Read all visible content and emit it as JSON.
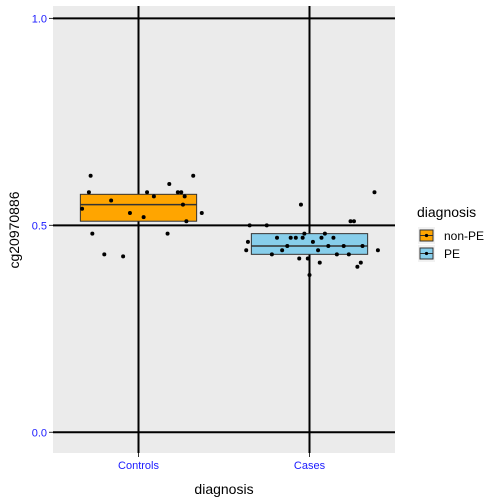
{
  "chart_data": {
    "type": "box",
    "xlabel": "diagnosis",
    "ylabel": "cg20970886",
    "ylim": [
      -0.05,
      1.03
    ],
    "y_ticks": [
      {
        "value": 0.0,
        "label": "0.0"
      },
      {
        "value": 0.5,
        "label": "0.5"
      },
      {
        "value": 1.0,
        "label": "1.0"
      }
    ],
    "categories": [
      "Controls",
      "Cases"
    ],
    "grid": true,
    "legend": {
      "title": "diagnosis",
      "placement": "right",
      "entries": [
        {
          "label": "non-PE",
          "color": "#FFA500"
        },
        {
          "label": "PE",
          "color": "#87CEEB"
        }
      ]
    },
    "boxes": [
      {
        "category": "Controls",
        "series": "non-PE",
        "color": "#FFA500",
        "q1": 0.51,
        "median": 0.55,
        "q3": 0.575
      },
      {
        "category": "Cases",
        "series": "PE",
        "color": "#87CEEB",
        "q1": 0.43,
        "median": 0.45,
        "q3": 0.48
      }
    ],
    "points": [
      {
        "category": "Controls",
        "offset": -0.33,
        "value": 0.54
      },
      {
        "category": "Controls",
        "offset": -0.29,
        "value": 0.58
      },
      {
        "category": "Controls",
        "offset": -0.28,
        "value": 0.62
      },
      {
        "category": "Controls",
        "offset": -0.27,
        "value": 0.48
      },
      {
        "category": "Controls",
        "offset": -0.2,
        "value": 0.43
      },
      {
        "category": "Controls",
        "offset": -0.16,
        "value": 0.56
      },
      {
        "category": "Controls",
        "offset": -0.09,
        "value": 0.425
      },
      {
        "category": "Controls",
        "offset": -0.05,
        "value": 0.53
      },
      {
        "category": "Controls",
        "offset": 0.03,
        "value": 0.52
      },
      {
        "category": "Controls",
        "offset": 0.05,
        "value": 0.58
      },
      {
        "category": "Controls",
        "offset": 0.09,
        "value": 0.57
      },
      {
        "category": "Controls",
        "offset": 0.17,
        "value": 0.48
      },
      {
        "category": "Controls",
        "offset": 0.18,
        "value": 0.6
      },
      {
        "category": "Controls",
        "offset": 0.23,
        "value": 0.58
      },
      {
        "category": "Controls",
        "offset": 0.25,
        "value": 0.58
      },
      {
        "category": "Controls",
        "offset": 0.26,
        "value": 0.55
      },
      {
        "category": "Controls",
        "offset": 0.27,
        "value": 0.57
      },
      {
        "category": "Controls",
        "offset": 0.28,
        "value": 0.51
      },
      {
        "category": "Controls",
        "offset": 0.32,
        "value": 0.62
      },
      {
        "category": "Controls",
        "offset": 0.37,
        "value": 0.53
      },
      {
        "category": "Cases",
        "offset": -0.37,
        "value": 0.44
      },
      {
        "category": "Cases",
        "offset": -0.36,
        "value": 0.46
      },
      {
        "category": "Cases",
        "offset": -0.35,
        "value": 0.5
      },
      {
        "category": "Cases",
        "offset": -0.25,
        "value": 0.5
      },
      {
        "category": "Cases",
        "offset": -0.22,
        "value": 0.43
      },
      {
        "category": "Cases",
        "offset": -0.19,
        "value": 0.47
      },
      {
        "category": "Cases",
        "offset": -0.16,
        "value": 0.44
      },
      {
        "category": "Cases",
        "offset": -0.13,
        "value": 0.45
      },
      {
        "category": "Cases",
        "offset": -0.11,
        "value": 0.47
      },
      {
        "category": "Cases",
        "offset": -0.08,
        "value": 0.47
      },
      {
        "category": "Cases",
        "offset": -0.06,
        "value": 0.42
      },
      {
        "category": "Cases",
        "offset": -0.05,
        "value": 0.55
      },
      {
        "category": "Cases",
        "offset": -0.04,
        "value": 0.47
      },
      {
        "category": "Cases",
        "offset": -0.03,
        "value": 0.48
      },
      {
        "category": "Cases",
        "offset": -0.01,
        "value": 0.42
      },
      {
        "category": "Cases",
        "offset": 0.0,
        "value": 0.38
      },
      {
        "category": "Cases",
        "offset": 0.02,
        "value": 0.46
      },
      {
        "category": "Cases",
        "offset": 0.05,
        "value": 0.44
      },
      {
        "category": "Cases",
        "offset": 0.06,
        "value": 0.41
      },
      {
        "category": "Cases",
        "offset": 0.07,
        "value": 0.47
      },
      {
        "category": "Cases",
        "offset": 0.09,
        "value": 0.48
      },
      {
        "category": "Cases",
        "offset": 0.11,
        "value": 0.45
      },
      {
        "category": "Cases",
        "offset": 0.14,
        "value": 0.47
      },
      {
        "category": "Cases",
        "offset": 0.16,
        "value": 0.43
      },
      {
        "category": "Cases",
        "offset": 0.2,
        "value": 0.45
      },
      {
        "category": "Cases",
        "offset": 0.23,
        "value": 0.43
      },
      {
        "category": "Cases",
        "offset": 0.24,
        "value": 0.51
      },
      {
        "category": "Cases",
        "offset": 0.26,
        "value": 0.51
      },
      {
        "category": "Cases",
        "offset": 0.28,
        "value": 0.4
      },
      {
        "category": "Cases",
        "offset": 0.3,
        "value": 0.41
      },
      {
        "category": "Cases",
        "offset": 0.31,
        "value": 0.45
      },
      {
        "category": "Cases",
        "offset": 0.38,
        "value": 0.58
      },
      {
        "category": "Cases",
        "offset": 0.4,
        "value": 0.44
      }
    ]
  }
}
